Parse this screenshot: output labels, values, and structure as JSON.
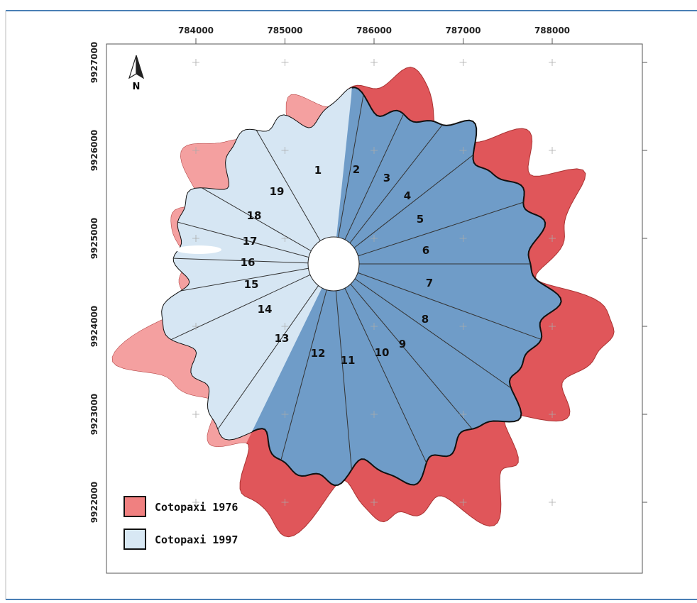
{
  "map": {
    "north": "N",
    "x_ticks": [
      "784000",
      "785000",
      "786000",
      "787000",
      "788000"
    ],
    "y_ticks": [
      "9927000",
      "9926000",
      "9925000",
      "9924000",
      "9923000",
      "9922000"
    ],
    "sectors": [
      "1",
      "2",
      "3",
      "4",
      "5",
      "6",
      "7",
      "8",
      "9",
      "10",
      "11",
      "12",
      "13",
      "14",
      "15",
      "16",
      "17",
      "18",
      "19"
    ],
    "legend": [
      {
        "label": "Cotopaxi 1976"
      },
      {
        "label": "Cotopaxi 1997"
      }
    ]
  }
}
